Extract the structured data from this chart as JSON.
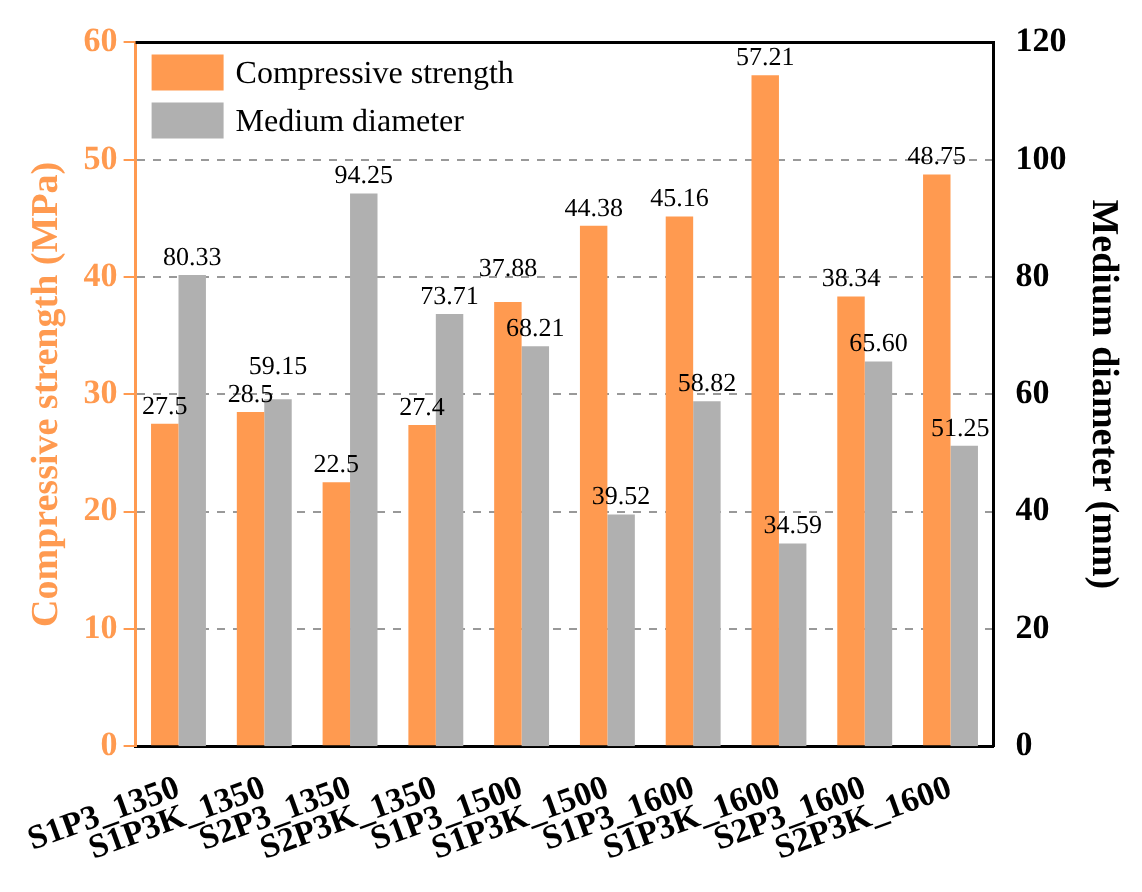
{
  "chart_data": {
    "type": "bar",
    "ylabel": "Compressive strength (MPa)",
    "y2label": "Medium diameter (mm)",
    "categories": [
      "S1P3_1350",
      "S1P3K_1350",
      "S2P3_1350",
      "S2P3K_1350",
      "S1P3_1500",
      "S1P3K_1500",
      "S1P3_1600",
      "S1P3K_1600",
      "S2P3_1600",
      "S2P3K_1600"
    ],
    "series": [
      {
        "name": "Compressive strength",
        "color": "#ff9a50",
        "values": [
          27.5,
          28.5,
          22.5,
          27.4,
          37.88,
          44.38,
          45.16,
          57.21,
          38.34,
          48.75
        ],
        "value_labels": [
          "27.5",
          "28.5",
          "22.5",
          "27.4",
          "37.88",
          "44.38",
          "45.16",
          "57.21",
          "38.34",
          "48.75"
        ]
      },
      {
        "name": "Medium diameter",
        "color": "#b0b0b0",
        "axis": "y2",
        "values": [
          80.33,
          59.15,
          94.25,
          73.71,
          68.21,
          39.52,
          58.82,
          34.59,
          65.6,
          51.25
        ],
        "value_labels": [
          "80.33",
          "59.15",
          "94.25",
          "73.71",
          "68.21",
          "39.52",
          "58.82",
          "34.59",
          "65.60",
          "51.25"
        ]
      }
    ],
    "ylim": [
      0,
      60
    ],
    "yticks": [
      0,
      10,
      20,
      30,
      40,
      50,
      60
    ],
    "y2lim": [
      0,
      120
    ],
    "y2ticks": [
      0,
      20,
      40,
      60,
      80,
      100,
      120
    ],
    "grid": "y",
    "legend": "top left"
  }
}
